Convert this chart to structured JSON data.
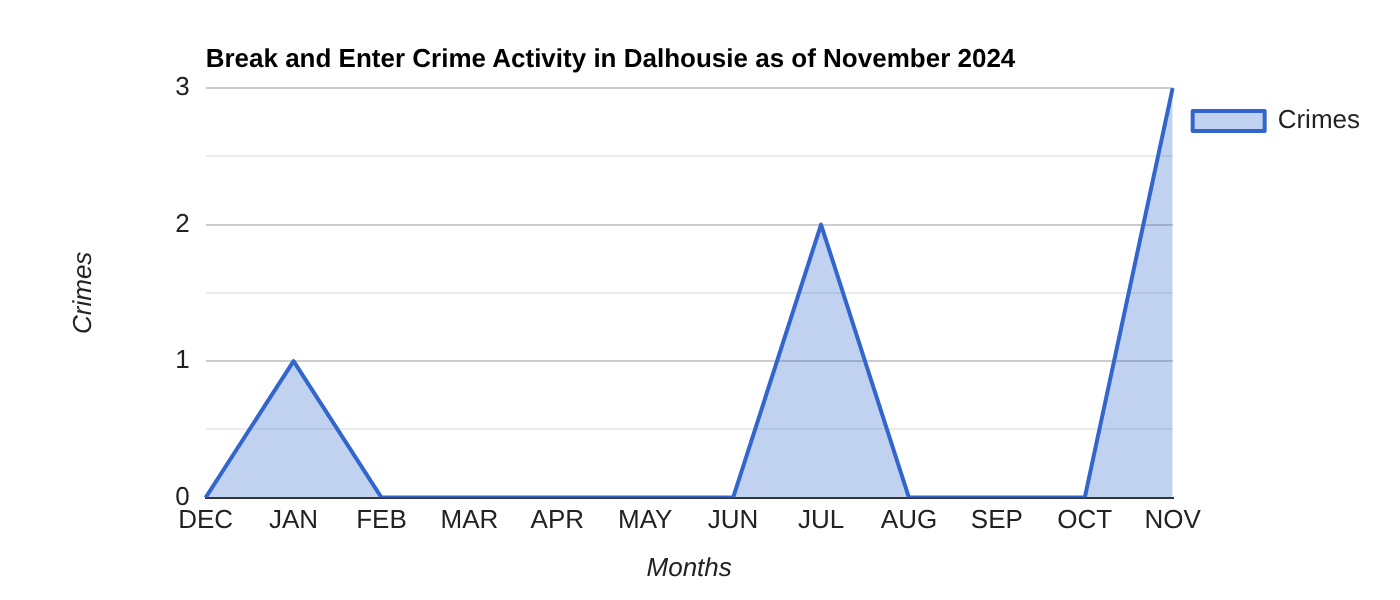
{
  "chart_data": {
    "type": "area",
    "title": "Break and Enter Crime Activity in Dalhousie as of November 2024",
    "xlabel": "Months",
    "ylabel": "Crimes",
    "categories": [
      "DEC",
      "JAN",
      "FEB",
      "MAR",
      "APR",
      "MAY",
      "JUN",
      "JUL",
      "AUG",
      "SEP",
      "OCT",
      "NOV"
    ],
    "series": [
      {
        "name": "Crimes",
        "color": "#3366cc",
        "values": [
          0,
          1,
          0,
          0,
          0,
          0,
          0,
          2,
          0,
          0,
          0,
          3
        ]
      }
    ],
    "ylim": [
      0,
      3
    ],
    "yticks": [
      0,
      {
        "value": 0.5,
        "label": null
      },
      1,
      {
        "value": 1.5,
        "label": null
      },
      2,
      {
        "value": 2.5,
        "label": null
      },
      3
    ],
    "grid": "y",
    "legend": "top right"
  }
}
